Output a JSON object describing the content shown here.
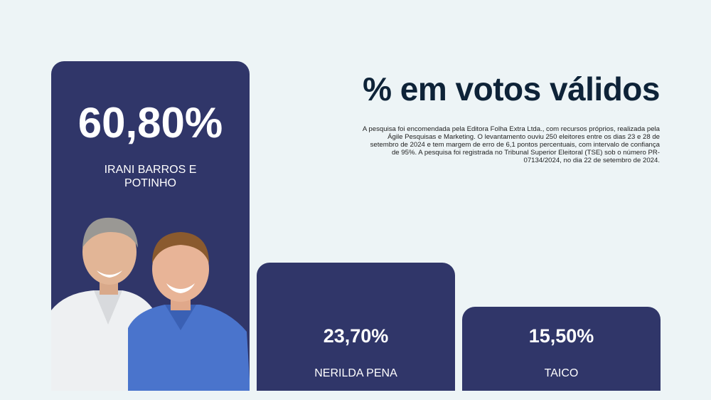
{
  "title": "% em votos válidos",
  "note": "A pesquisa foi encomendada pela Editora Folha Extra Ltda., com recursos próprios, realizada pela Ágile Pesquisas e Marketing. O levantamento ouviu 250 eleitores entre os dias 23 e 28 de setembro de 2024 e tem margem de erro de 6,1 pontos percentuais, com intervalo de confiança de 95%. A pesquisa foi registrada no Tribunal Superior Eleitoral (TSE) sob o número PR-07134/2024, no dia 22 de setembro de 2024.",
  "colors": {
    "bar": "#303669",
    "background": "#edf4f6",
    "text": "#ffffff",
    "title": "#0e2338"
  },
  "chart_data": {
    "type": "bar",
    "title": "% em votos válidos",
    "categories": [
      "IRANI BARROS E POTINHO",
      "NERILDA PENA",
      "TAICO"
    ],
    "values": [
      60.8,
      23.7,
      15.5
    ],
    "labels": [
      "60,80%",
      "23,70%",
      "15,50%"
    ],
    "unit": "%"
  }
}
